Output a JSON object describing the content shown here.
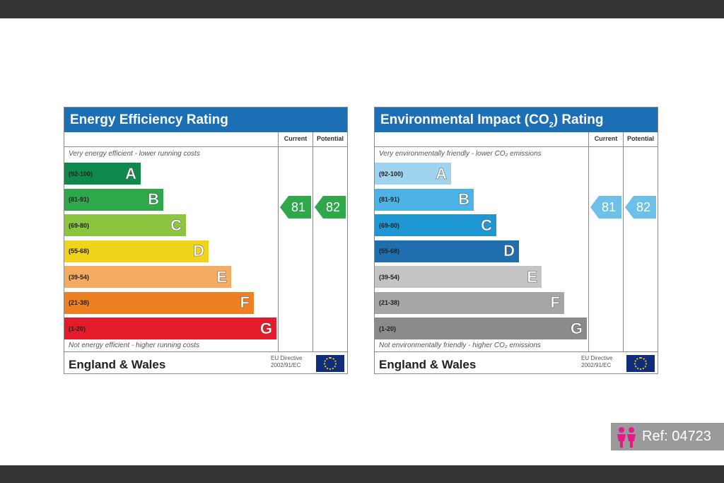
{
  "left": {
    "title": "Energy Efficiency Rating",
    "current_label": "Current",
    "potential_label": "Potential",
    "top_text": "Very energy efficient - lower running costs",
    "bottom_text": "Not energy efficient - higher running costs",
    "bands": [
      {
        "range": "(92-100)",
        "letter": "A",
        "color": "#0f8a4c"
      },
      {
        "range": "(81-91)",
        "letter": "B",
        "color": "#2ea84a"
      },
      {
        "range": "(69-80)",
        "letter": "C",
        "color": "#8cc63f"
      },
      {
        "range": "(55-68)",
        "letter": "D",
        "color": "#f2d31b"
      },
      {
        "range": "(39-54)",
        "letter": "E",
        "color": "#f6ab63"
      },
      {
        "range": "(21-38)",
        "letter": "F",
        "color": "#ef8022"
      },
      {
        "range": "(1-20)",
        "letter": "G",
        "color": "#e31b2b"
      }
    ],
    "current": "81",
    "potential": "82",
    "arrow_color": "#2ea84a",
    "footer_name": "England & Wales",
    "directive": "EU Directive 2002/91/EC"
  },
  "right": {
    "title": "Environmental Impact (CO",
    "title_sub": "2",
    "title_end": ") Rating",
    "current_label": "Current",
    "potential_label": "Potential",
    "top_text": "Very environmentally friendly - lower CO₂ emissions",
    "bottom_text": "Not environmentally friendly - higher CO₂ emissions",
    "bands": [
      {
        "range": "(92-100)",
        "letter": "A",
        "color": "#9fd3f0"
      },
      {
        "range": "(81-91)",
        "letter": "B",
        "color": "#4db3e6"
      },
      {
        "range": "(69-80)",
        "letter": "C",
        "color": "#1f97d4"
      },
      {
        "range": "(55-68)",
        "letter": "D",
        "color": "#1f6eae"
      },
      {
        "range": "(39-54)",
        "letter": "E",
        "color": "#c4c4c4"
      },
      {
        "range": "(21-38)",
        "letter": "F",
        "color": "#a6a6a6"
      },
      {
        "range": "(1-20)",
        "letter": "G",
        "color": "#8a8a8a"
      }
    ],
    "current": "81",
    "potential": "82",
    "arrow_color": "#6cc0ea",
    "footer_name": "England & Wales",
    "directive": "EU Directive 2002/91/EC"
  },
  "ref": {
    "text": "Ref: 04723",
    "icon": "people-icon",
    "icon_color": "#e6198a"
  }
}
